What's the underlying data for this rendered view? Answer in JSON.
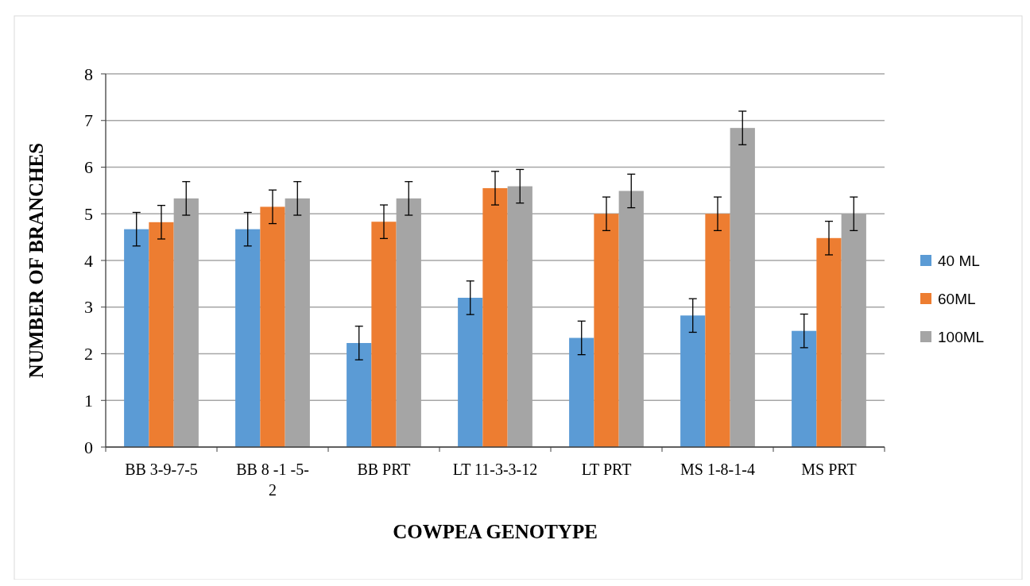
{
  "chart_data": {
    "type": "bar",
    "xlabel": "COWPEA GENOTYPE",
    "ylabel": "NUMBER OF BRANCHES",
    "categories": [
      "BB 3-9-7-5",
      "BB 8 -1 -5-2",
      "BB PRT",
      "LT 11-3-3-12",
      "LT PRT",
      "MS 1-8-1-4",
      "MS PRT"
    ],
    "series": [
      {
        "name": "40 ML",
        "color": "#5b9bd5",
        "values": [
          4.67,
          4.67,
          2.23,
          3.2,
          2.34,
          2.82,
          2.49
        ],
        "errors": [
          0.36,
          0.36,
          0.36,
          0.36,
          0.36,
          0.36,
          0.36
        ]
      },
      {
        "name": "60ML",
        "color": "#ed7d31",
        "values": [
          4.82,
          5.15,
          4.83,
          5.55,
          5.0,
          5.0,
          4.48
        ],
        "errors": [
          0.36,
          0.36,
          0.36,
          0.36,
          0.36,
          0.36,
          0.36
        ]
      },
      {
        "name": "100ML",
        "color": "#a5a5a5",
        "values": [
          5.33,
          5.33,
          5.33,
          5.59,
          5.49,
          6.84,
          5.0
        ],
        "errors": [
          0.36,
          0.36,
          0.36,
          0.36,
          0.36,
          0.36,
          0.36
        ]
      }
    ],
    "ylim": [
      0,
      8
    ],
    "yticks": [
      0,
      1,
      2,
      3,
      4,
      5,
      6,
      7,
      8
    ],
    "grid": "y",
    "legend": "right"
  }
}
